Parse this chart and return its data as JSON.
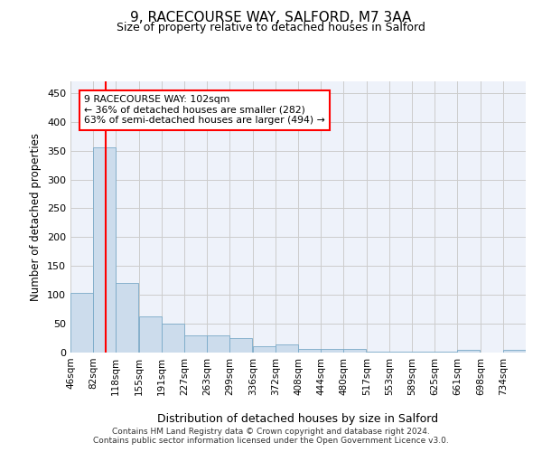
{
  "title": "9, RACECOURSE WAY, SALFORD, M7 3AA",
  "subtitle": "Size of property relative to detached houses in Salford",
  "xlabel": "Distribution of detached houses by size in Salford",
  "ylabel": "Number of detached properties",
  "bar_color": "#ccdcec",
  "bar_edge_color": "#7aaac8",
  "grid_color": "#cccccc",
  "bg_color": "#eef2fa",
  "red_line_x": 102,
  "annotation_line1": "9 RACECOURSE WAY: 102sqm",
  "annotation_line2": "← 36% of detached houses are smaller (282)",
  "annotation_line3": "63% of semi-detached houses are larger (494) →",
  "footer_text": "Contains HM Land Registry data © Crown copyright and database right 2024.\nContains public sector information licensed under the Open Government Licence v3.0.",
  "bins": [
    46,
    82,
    118,
    155,
    191,
    227,
    263,
    299,
    336,
    372,
    408,
    444,
    480,
    517,
    553,
    589,
    625,
    661,
    698,
    734,
    770
  ],
  "values": [
    104,
    356,
    120,
    62,
    50,
    30,
    30,
    25,
    11,
    14,
    6,
    6,
    7,
    2,
    2,
    2,
    2,
    4,
    0,
    4
  ],
  "ylim": [
    0,
    470
  ],
  "yticks": [
    0,
    50,
    100,
    150,
    200,
    250,
    300,
    350,
    400,
    450
  ]
}
